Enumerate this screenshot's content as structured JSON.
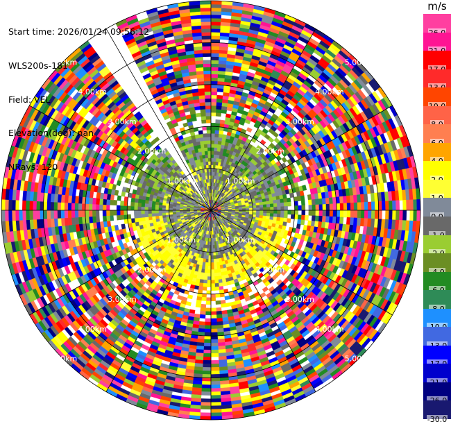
{
  "header": {
    "start_time": "Start time: 2026/01/24 09:56:12",
    "instrument": "WLS200s-181",
    "field": "Field: VEL",
    "elevation": "Elevation(deg): nan",
    "nrays": "NRays: 120"
  },
  "colorbar": {
    "unit": "m/s",
    "levels": [
      {
        "label": "26.0",
        "color": "#ff3fa0"
      },
      {
        "label": "21.0",
        "color": "#ff1493"
      },
      {
        "label": "17.0",
        "color": "#ff0000"
      },
      {
        "label": "13.0",
        "color": "#ff2a2a"
      },
      {
        "label": "10.0",
        "color": "#ff4500"
      },
      {
        "label": "8.0",
        "color": "#ff6347"
      },
      {
        "label": "6.0",
        "color": "#ff7f50"
      },
      {
        "label": "4.0",
        "color": "#ffa500"
      },
      {
        "label": "2.0",
        "color": "#ffff00"
      },
      {
        "label": "1.0",
        "color": "#ffff33"
      },
      {
        "label": "0.0",
        "color": "#808a99"
      },
      {
        "label": "-1.0",
        "color": "#696969"
      },
      {
        "label": "-2.0",
        "color": "#9acd32"
      },
      {
        "label": "-4.0",
        "color": "#6b8e23"
      },
      {
        "label": "-6.0",
        "color": "#228b22"
      },
      {
        "label": "-8.0",
        "color": "#2e8b57"
      },
      {
        "label": "-10.0",
        "color": "#1e90ff"
      },
      {
        "label": "-13.0",
        "color": "#4169e1"
      },
      {
        "label": "-17.0",
        "color": "#0000ff"
      },
      {
        "label": "-21.0",
        "color": "#0000cd"
      },
      {
        "label": "-26.0",
        "color": "#000080"
      },
      {
        "label": "-30.0",
        "color": "#191970"
      }
    ]
  },
  "chart_data": {
    "type": "heatmap",
    "projection": "polar-ppi",
    "field": "VEL",
    "units": "m/s",
    "nrays": 120,
    "range_rings_km": [
      1.0,
      2.0,
      3.0,
      4.0,
      5.0
    ],
    "ring_label_texts": [
      "1.00km",
      "2.00km",
      "3.00km",
      "4.00km",
      "5.00km"
    ],
    "max_range_km": 5.0,
    "spokes_deg": [
      0,
      30,
      60,
      90,
      120,
      150,
      180,
      210,
      240,
      270,
      300,
      330
    ],
    "missing_sector_deg": [
      325,
      333
    ],
    "zones": [
      {
        "r_km": [
          0.0,
          0.6
        ],
        "description": "noisy mixed values"
      },
      {
        "r_km": [
          0.4,
          1.6
        ],
        "dominant_values": [
          0.0,
          -1.0,
          -2.0,
          1.0,
          2.0
        ]
      },
      {
        "r_km": [
          1.6,
          2.4
        ],
        "dominant_values": [
          -2.0,
          -4.0,
          -6.0,
          2.0,
          4.0
        ]
      },
      {
        "r_km": [
          2.4,
          5.0
        ],
        "description": "noise, all colors from -30 to 26"
      }
    ]
  }
}
